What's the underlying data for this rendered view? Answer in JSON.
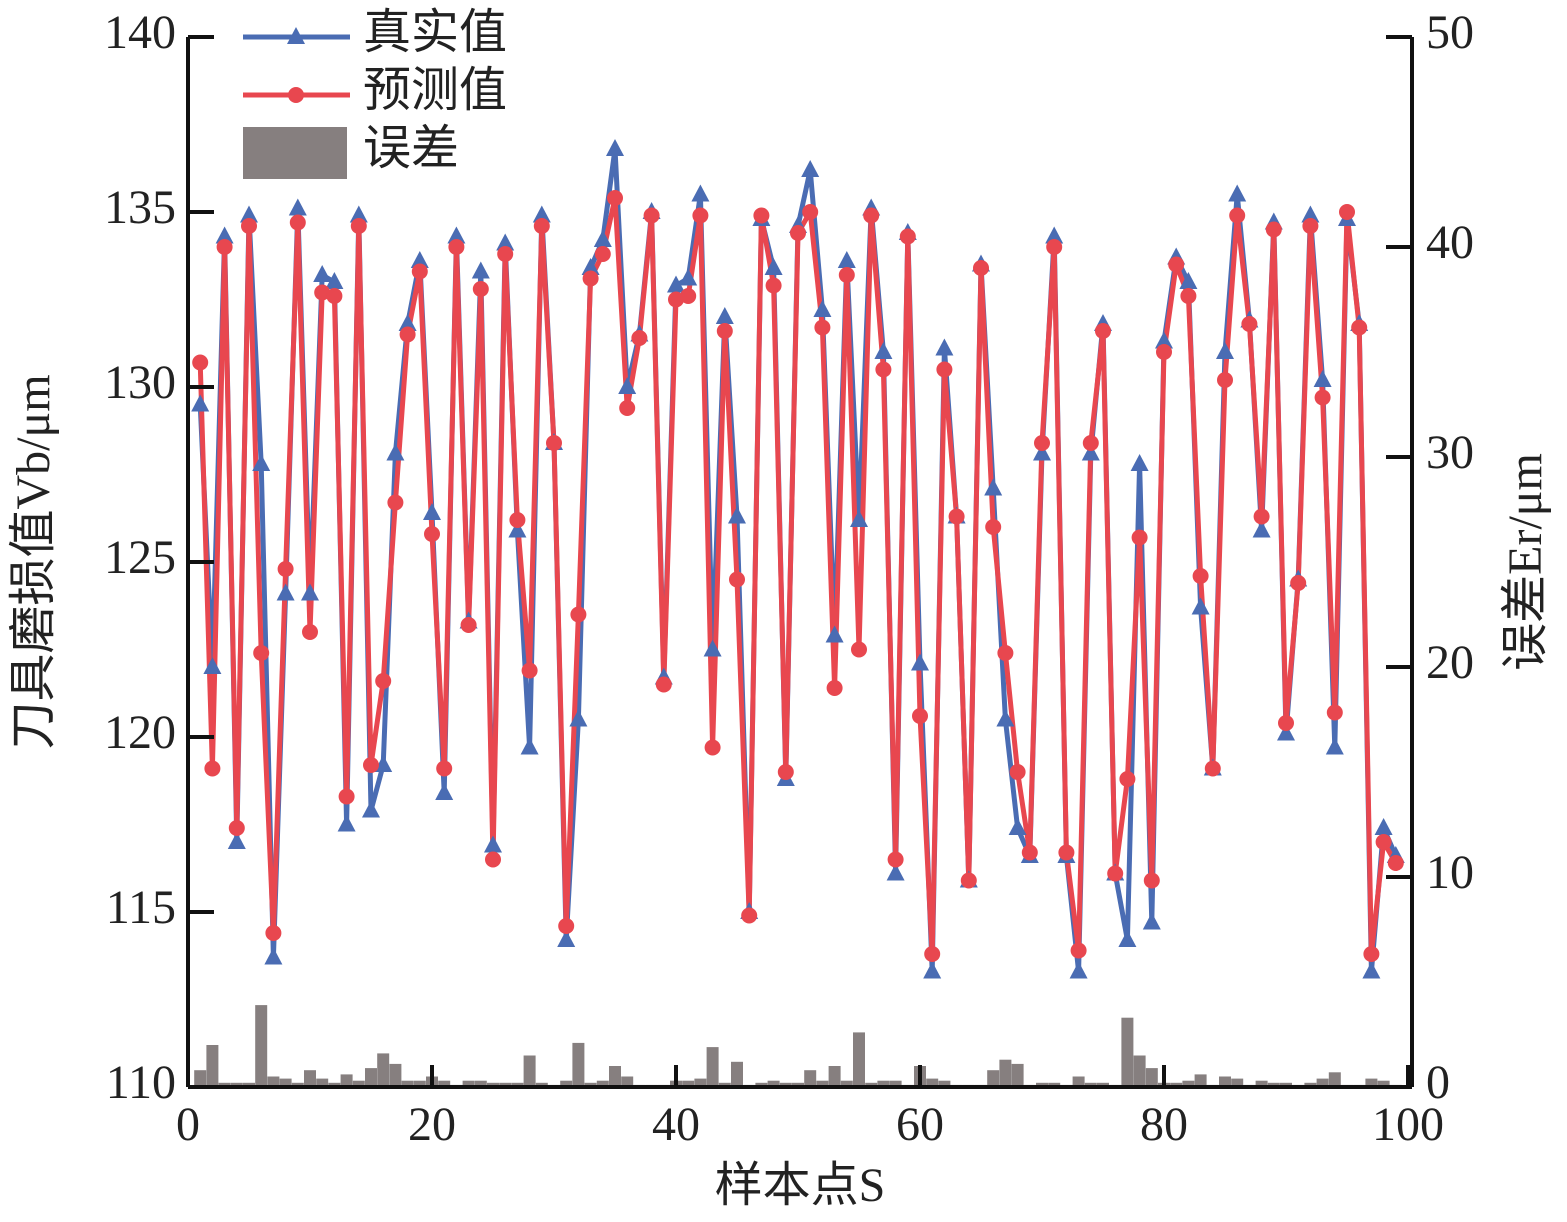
{
  "chart_data": {
    "type": "line",
    "xlabel": "样本点S",
    "ylabel": "刀具磨损值Vb/μm",
    "y2label": "误差Er/μm",
    "x": [
      1,
      2,
      3,
      4,
      5,
      6,
      7,
      8,
      9,
      10,
      11,
      12,
      13,
      14,
      15,
      16,
      17,
      18,
      19,
      20,
      21,
      22,
      23,
      24,
      25,
      26,
      27,
      28,
      29,
      30,
      31,
      32,
      33,
      34,
      35,
      36,
      37,
      38,
      39,
      40,
      41,
      42,
      43,
      44,
      45,
      46,
      47,
      48,
      49,
      50,
      51,
      52,
      53,
      54,
      55,
      56,
      57,
      58,
      59,
      60,
      61,
      62,
      63,
      64,
      65,
      66,
      67,
      68,
      69,
      70,
      71,
      72,
      73,
      74,
      75,
      76,
      77,
      78,
      79,
      80,
      81,
      82,
      83,
      84,
      85,
      86,
      87,
      88,
      89,
      90,
      91,
      92,
      93,
      94,
      95,
      96,
      97,
      98,
      99
    ],
    "xlim": [
      0,
      100
    ],
    "xticks": [
      0,
      20,
      40,
      60,
      80,
      100
    ],
    "ylim": [
      110,
      140
    ],
    "yticks": [
      110,
      115,
      120,
      125,
      130,
      135,
      140
    ],
    "y2lim": [
      0,
      50
    ],
    "y2ticks": [
      0,
      10,
      20,
      30,
      40,
      50
    ],
    "legend": "upper left",
    "series": [
      {
        "name": "真实值",
        "color": "#4a6cb3",
        "marker": "triangle",
        "values": [
          129.5,
          122,
          134.3,
          117,
          134.9,
          127.8,
          113.7,
          124.1,
          135.1,
          124.1,
          133.2,
          133,
          117.5,
          134.9,
          117.9,
          119.2,
          128.1,
          131.8,
          133.6,
          126.4,
          118.4,
          134.3,
          123.3,
          133.3,
          116.9,
          134.1,
          125.9,
          119.7,
          134.9,
          128.4,
          114.2,
          120.5,
          133.4,
          134.2,
          136.8,
          130,
          131.5,
          135,
          121.7,
          132.9,
          133.1,
          135.5,
          122.5,
          132,
          126.3,
          115,
          134.8,
          133.4,
          118.8,
          134.6,
          136.2,
          132.2,
          122.9,
          133.6,
          126.2,
          135.1,
          131,
          116.1,
          134.4,
          122.1,
          113.3,
          131.1,
          126.3,
          115.9,
          133.5,
          127.1,
          120.5,
          117.4,
          116.6,
          128.1,
          134.3,
          116.6,
          113.3,
          128.1,
          131.8,
          116.1,
          114.2,
          127.8,
          114.7,
          131.3,
          133.7,
          133,
          123.7,
          119.1,
          131,
          135.5,
          131.9,
          125.9,
          134.7,
          120.1,
          124.5,
          134.9,
          130.2,
          119.7,
          134.8,
          131.8,
          113.3,
          117.4,
          116.6
        ]
      },
      {
        "name": "预测值",
        "color": "#e8474f",
        "marker": "circle",
        "values": [
          130.7,
          119.1,
          134,
          117.4,
          134.6,
          122.4,
          114.4,
          124.8,
          134.7,
          123,
          132.7,
          132.6,
          118.3,
          134.6,
          119.2,
          121.6,
          126.7,
          131.5,
          133.3,
          125.8,
          119.1,
          134,
          123.2,
          132.8,
          116.5,
          133.8,
          126.2,
          121.9,
          134.6,
          128.4,
          114.6,
          123.5,
          133.1,
          133.8,
          135.4,
          129.4,
          131.4,
          134.9,
          121.5,
          132.5,
          132.6,
          134.9,
          119.7,
          131.6,
          124.5,
          114.9,
          134.9,
          132.9,
          119,
          134.4,
          135,
          131.7,
          121.4,
          133.2,
          122.5,
          134.9,
          130.5,
          116.5,
          134.3,
          120.6,
          113.8,
          130.5,
          126.3,
          115.9,
          133.4,
          126,
          122.4,
          119,
          116.7,
          128.4,
          134,
          116.7,
          113.9,
          128.4,
          131.6,
          116.1,
          118.8,
          125.7,
          115.9,
          131,
          133.5,
          132.6,
          124.6,
          119.1,
          130.2,
          134.9,
          131.8,
          126.3,
          134.5,
          120.4,
          124.4,
          134.6,
          129.7,
          120.7,
          135,
          131.7,
          113.8,
          117,
          116.4
        ]
      },
      {
        "name": "误差",
        "color": "#867f7f",
        "kind": "bar",
        "axis": "y2",
        "values": [
          0.8,
          2,
          0.2,
          0.2,
          0.2,
          3.9,
          0.5,
          0.4,
          0.2,
          0.8,
          0.4,
          0.2,
          0.6,
          0.3,
          0.9,
          1.6,
          1.1,
          0.3,
          0.3,
          0.5,
          0.3,
          0.1,
          0.3,
          0.3,
          0.2,
          0.2,
          0.2,
          1.5,
          0.2,
          0.1,
          0.3,
          2.1,
          0.2,
          0.3,
          1,
          0.5,
          0.1,
          0.1,
          0.1,
          0.3,
          0.3,
          0.4,
          1.9,
          0.2,
          1.2,
          0.1,
          0.2,
          0.3,
          0.2,
          0.2,
          0.8,
          0.3,
          1,
          0.3,
          2.6,
          0.2,
          0.3,
          0.3,
          0.1,
          1,
          0.4,
          0.3,
          0.1,
          0.1,
          0.1,
          0.8,
          1.3,
          1.1,
          0.1,
          0.2,
          0.2,
          0.1,
          0.5,
          0.2,
          0.2,
          0.1,
          3.3,
          1.5,
          0.9,
          0.2,
          0.2,
          0.3,
          0.6,
          0.1,
          0.5,
          0.4,
          0.1,
          0.3,
          0.2,
          0.2,
          0.1,
          0.2,
          0.4,
          0.7,
          0.1,
          0.1,
          0.4,
          0.3,
          0.1
        ]
      }
    ]
  }
}
